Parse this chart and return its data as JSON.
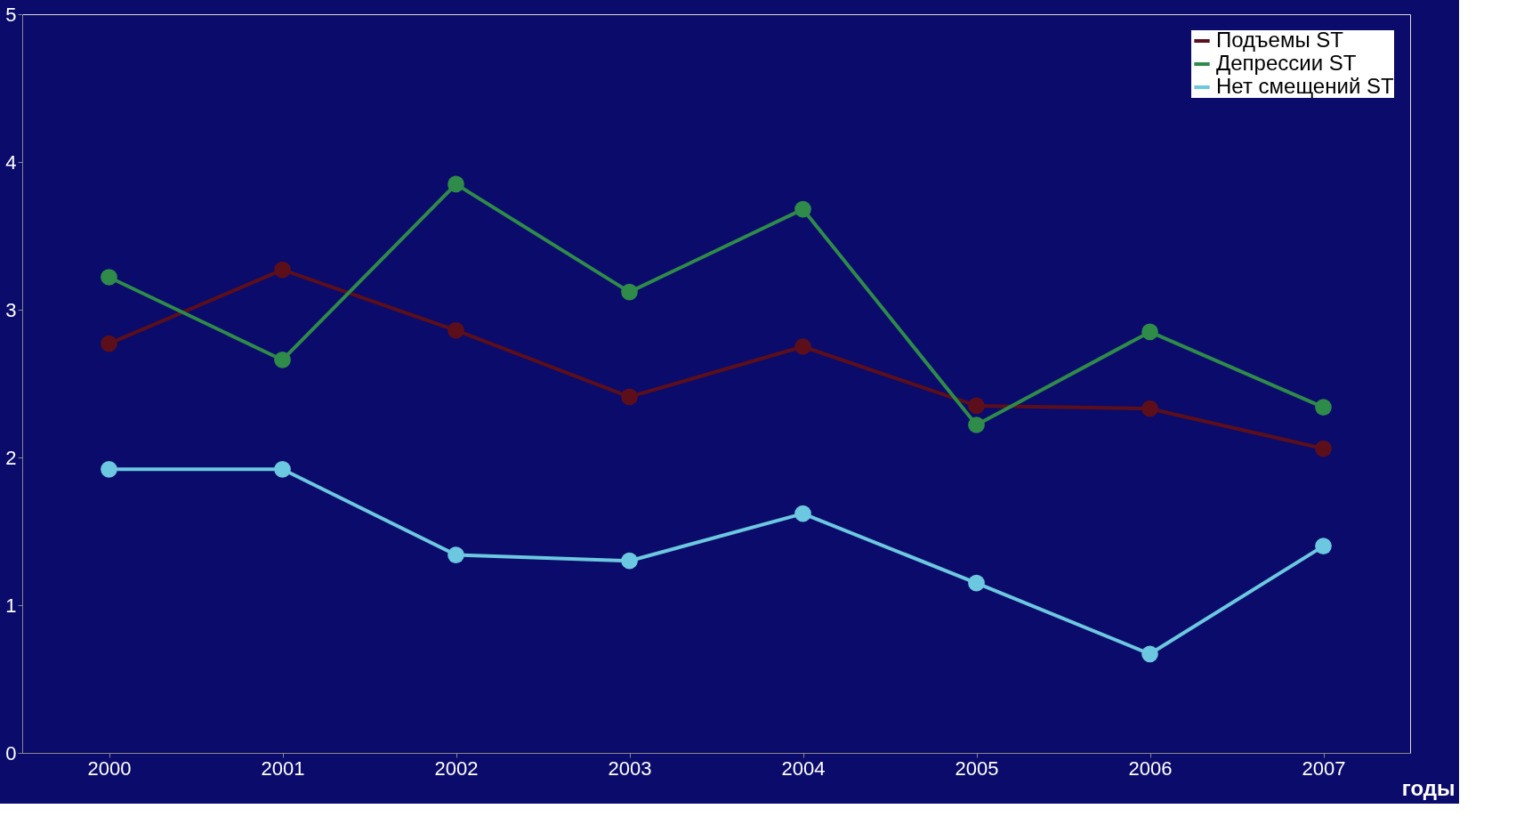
{
  "chart_data": {
    "type": "line",
    "xlabel": "годы",
    "categories": [
      "2000",
      "2001",
      "2002",
      "2003",
      "2004",
      "2005",
      "2006",
      "2007"
    ],
    "series": [
      {
        "name": "Подъемы ST",
        "color": "#5c0f1a",
        "values": [
          2.77,
          3.27,
          2.86,
          2.41,
          2.75,
          2.35,
          2.33,
          2.06
        ]
      },
      {
        "name": "Депрессии ST",
        "color": "#2e8b4a",
        "values": [
          3.22,
          2.66,
          3.85,
          3.12,
          3.68,
          2.22,
          2.85,
          2.34
        ]
      },
      {
        "name": "Нет смещений ST",
        "color": "#6cc8e0",
        "values": [
          1.92,
          1.92,
          1.34,
          1.3,
          1.62,
          1.15,
          0.67,
          1.4
        ]
      }
    ],
    "ylim": [
      0,
      5
    ],
    "yticks": [
      0,
      1,
      2,
      3,
      4,
      5
    ],
    "grid": false,
    "legend": "top right",
    "marker": "circle",
    "line_style": "solid"
  }
}
